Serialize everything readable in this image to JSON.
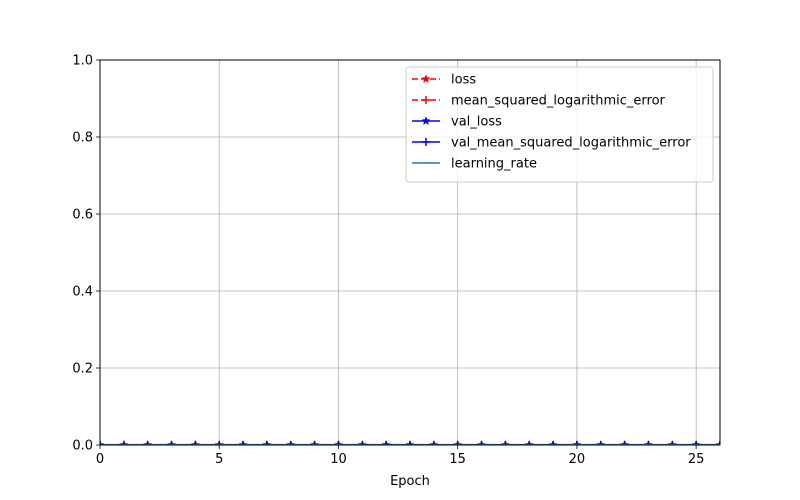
{
  "chart_data": {
    "type": "line",
    "title": "",
    "xlabel": "Epoch",
    "ylabel": "",
    "xlim": [
      0,
      26
    ],
    "ylim": [
      0.0,
      1.0
    ],
    "xticks": [
      0,
      5,
      10,
      15,
      20,
      25
    ],
    "xtick_labels": [
      "0",
      "5",
      "10",
      "15",
      "20",
      "25"
    ],
    "yticks": [
      0.0,
      0.2,
      0.4,
      0.6,
      0.8,
      1.0
    ],
    "ytick_labels": [
      "0.0",
      "0.2",
      "0.4",
      "0.6",
      "0.8",
      "1.0"
    ],
    "grid": true,
    "legend_position": "top-right",
    "x": [
      0,
      1,
      2,
      3,
      4,
      5,
      6,
      7,
      8,
      9,
      10,
      11,
      12,
      13,
      14,
      15,
      16,
      17,
      18,
      19,
      20,
      21,
      22,
      23,
      24,
      25,
      26
    ],
    "series": [
      {
        "name": "loss",
        "color": "#ff0000",
        "dash": "dashed",
        "marker": "star",
        "values": [
          0,
          0,
          0,
          0,
          0,
          0,
          0,
          0,
          0,
          0,
          0,
          0,
          0,
          0,
          0,
          0,
          0,
          0,
          0,
          0,
          0,
          0,
          0,
          0,
          0,
          0,
          0
        ]
      },
      {
        "name": "mean_squared_logarithmic_error",
        "color": "#ff0000",
        "dash": "dashed",
        "marker": "plus",
        "values": [
          0,
          0,
          0,
          0,
          0,
          0,
          0,
          0,
          0,
          0,
          0,
          0,
          0,
          0,
          0,
          0,
          0,
          0,
          0,
          0,
          0,
          0,
          0,
          0,
          0,
          0,
          0
        ]
      },
      {
        "name": "val_loss",
        "color": "#0000ff",
        "dash": "solid",
        "marker": "star",
        "values": [
          0,
          0,
          0,
          0,
          0,
          0,
          0,
          0,
          0,
          0,
          0,
          0,
          0,
          0,
          0,
          0,
          0,
          0,
          0,
          0,
          0,
          0,
          0,
          0,
          0,
          0,
          0
        ]
      },
      {
        "name": "val_mean_squared_logarithmic_error",
        "color": "#0000ff",
        "dash": "solid",
        "marker": "plus",
        "values": [
          0,
          0,
          0,
          0,
          0,
          0,
          0,
          0,
          0,
          0,
          0,
          0,
          0,
          0,
          0,
          0,
          0,
          0,
          0,
          0,
          0,
          0,
          0,
          0,
          0,
          0,
          0
        ]
      },
      {
        "name": "learning_rate",
        "color": "#1f77b4",
        "dash": "solid",
        "marker": "none",
        "values": [
          0.001,
          0.001,
          0.001,
          0.001,
          0.001,
          0.001,
          0.001,
          0.001,
          0.001,
          0.001,
          0.001,
          0.001,
          0.001,
          0.001,
          0.001,
          0.001,
          0.001,
          0.001,
          0.001,
          0.001,
          0.001,
          0.001,
          0.001,
          0.001,
          0.001,
          0.001,
          0.001
        ]
      }
    ]
  }
}
